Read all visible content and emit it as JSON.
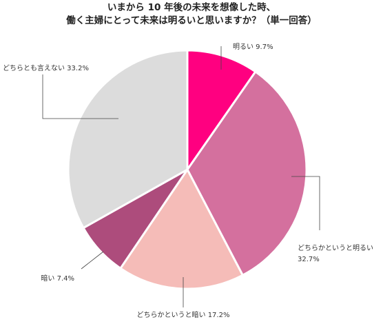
{
  "chart_data": {
    "type": "pie",
    "title_lines": [
      "いまから 10 年後の未来を想像した時、",
      "働く主婦にとって未来は明るいと思いますか？（単一回答）"
    ],
    "slices": [
      {
        "label": "明るい",
        "value": 9.7,
        "display": "明るい 9.7%",
        "color": "#ff0080"
      },
      {
        "label": "どちらかというと明るい",
        "value": 32.7,
        "display_lines": [
          "どちらかというと明るい",
          "32.7%"
        ],
        "color": "#d4709e"
      },
      {
        "label": "どちらかというと暗い",
        "value": 17.2,
        "display": "どちらかというと暗い 17.2%",
        "color": "#f5bcb8"
      },
      {
        "label": "暗い",
        "value": 7.4,
        "display": "暗い 7.4%",
        "color": "#ad4c7c"
      },
      {
        "label": "どちらとも言えない",
        "value": 33.2,
        "display": "どちらとも言えない 33.2%",
        "color": "#dcdcdc"
      }
    ],
    "start_angle": "top",
    "direction": "clockwise",
    "legend": "none"
  }
}
